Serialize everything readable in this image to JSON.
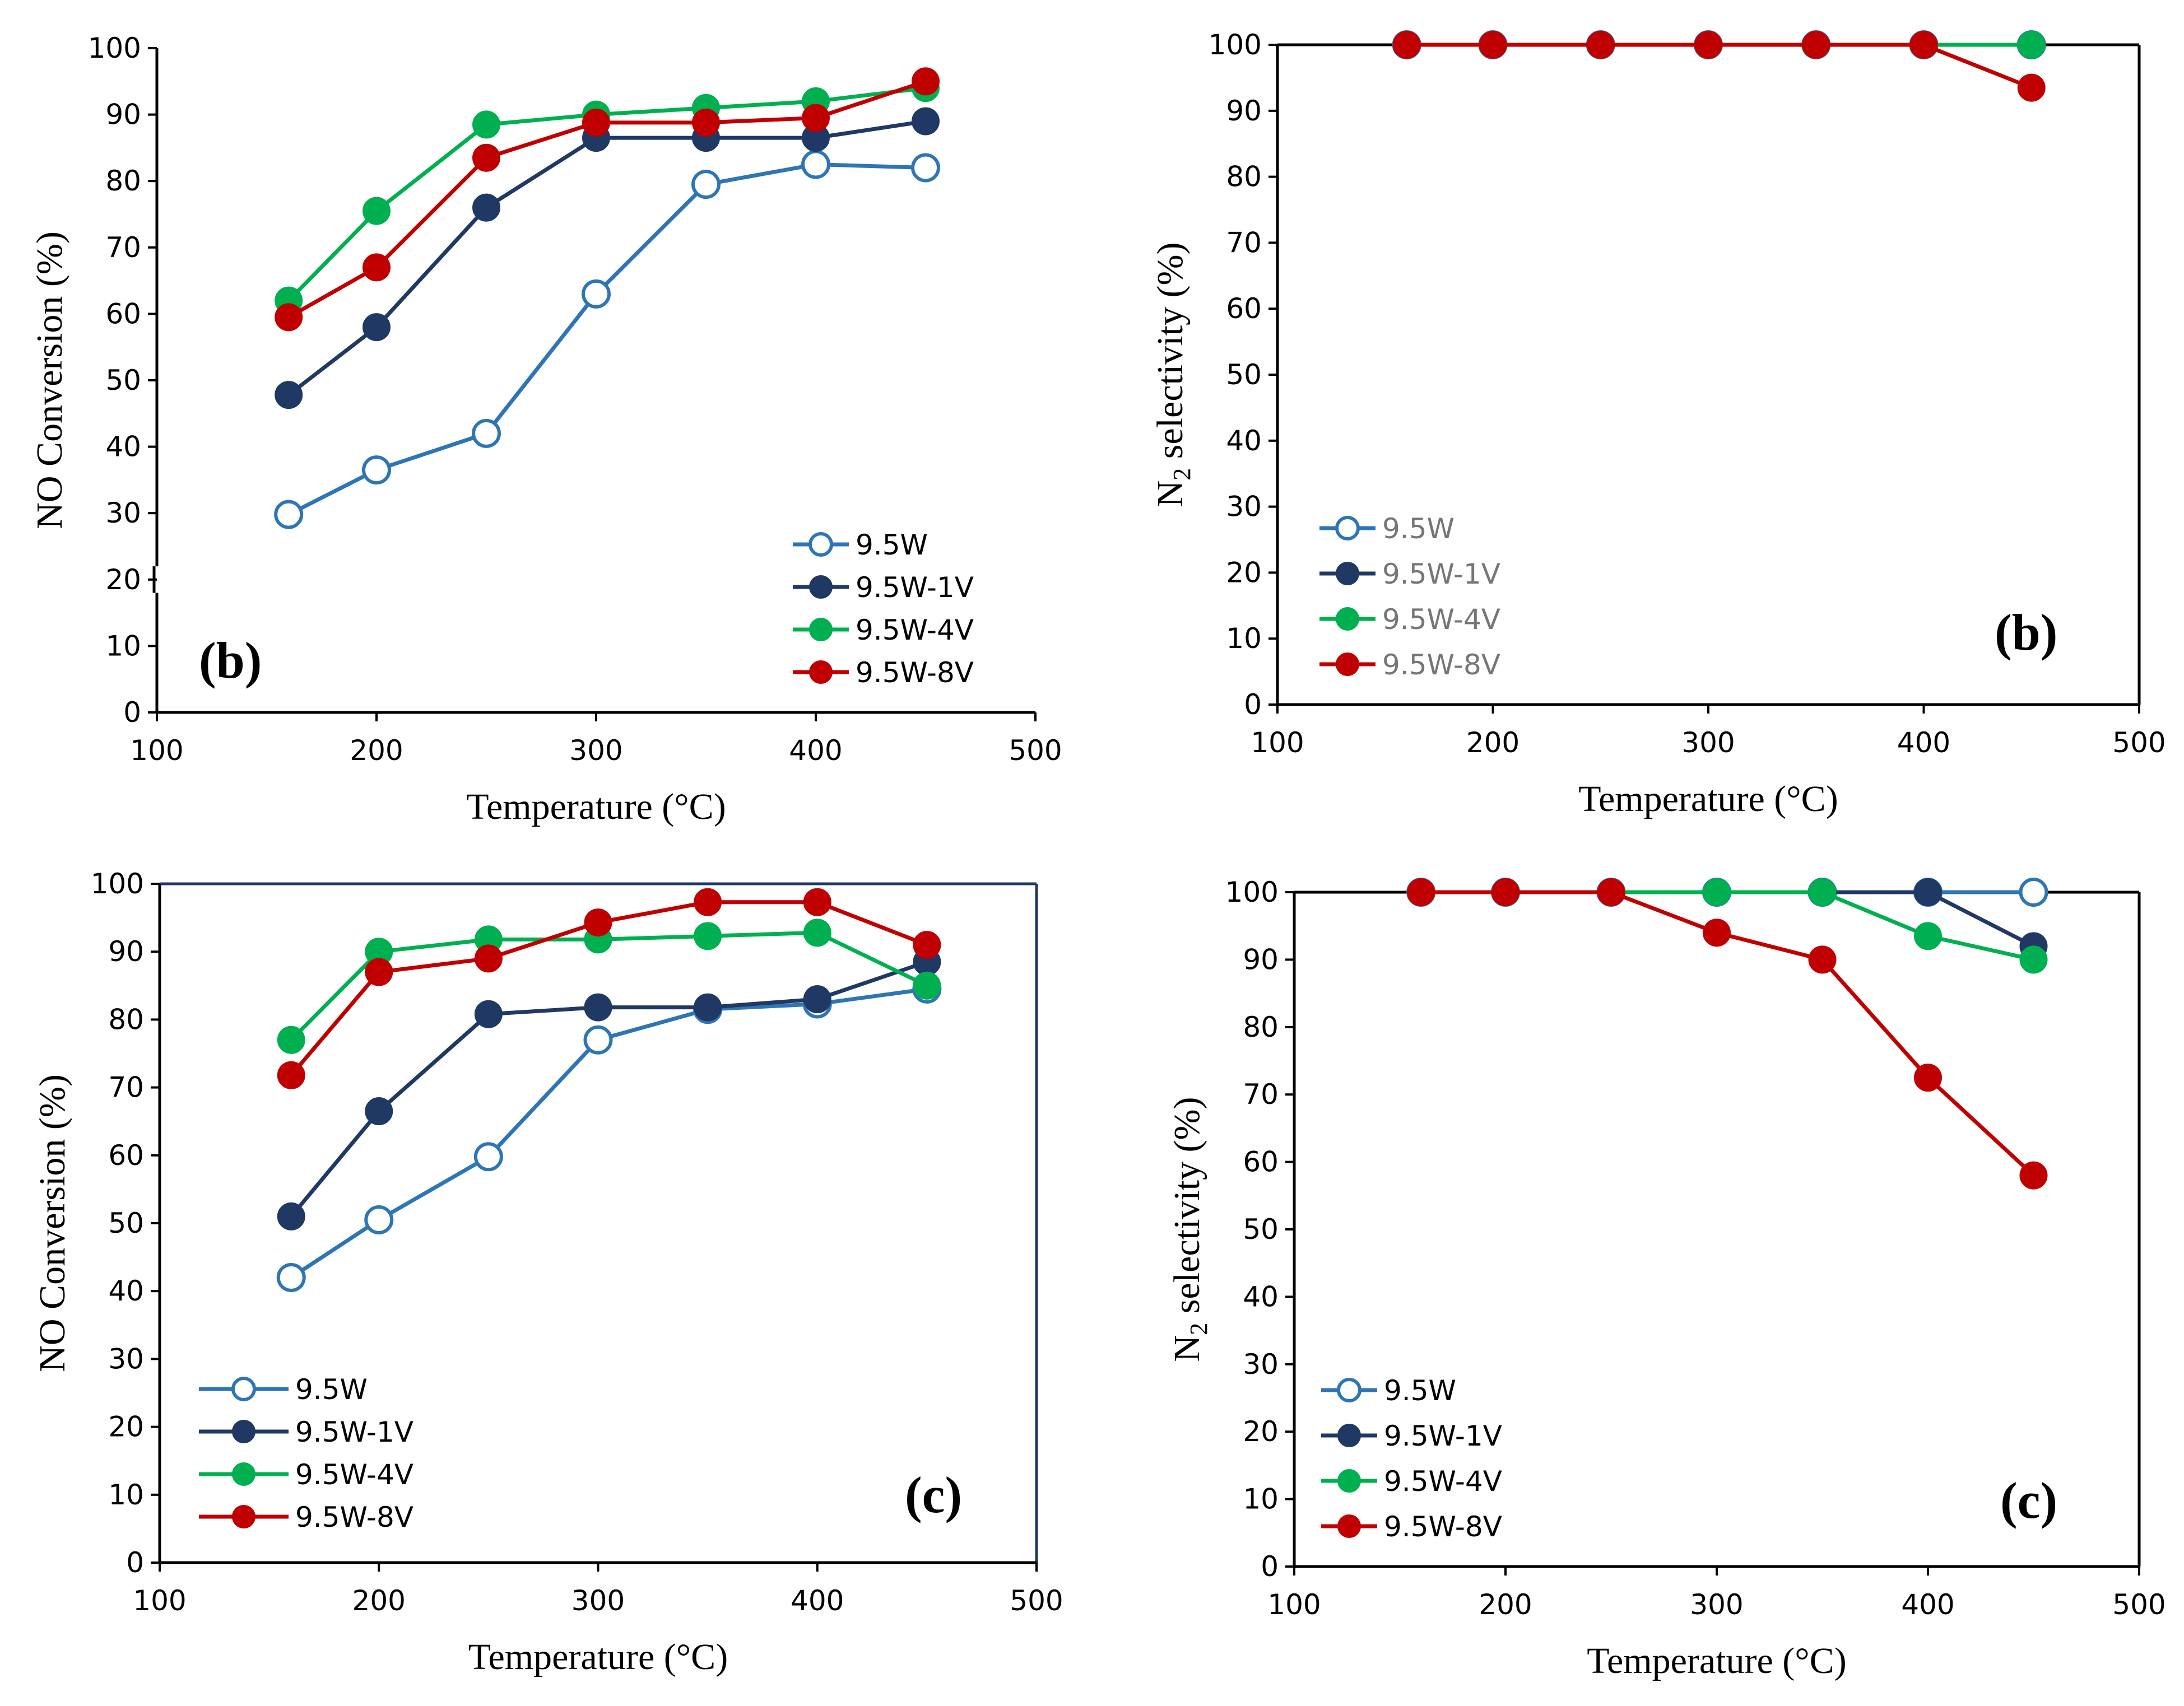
{
  "figure": {
    "colors": {
      "9.5W": "#2E75B6",
      "9.5W-1V": "#1F3864",
      "9.5W-4V": "#00B050",
      "9.5W-8V": "#C00000",
      "frame_blue": "#1F3864"
    }
  },
  "chart_data": [
    {
      "type": "line",
      "title": "",
      "panel_label": "(b)",
      "xlabel": "Temperature (°C)",
      "ylabel": "NO Conversion (%)",
      "xlim": [
        100,
        500
      ],
      "ylim": [
        0,
        100
      ],
      "xticks": [
        "100",
        "200",
        "300",
        "400",
        "500"
      ],
      "yticks": [
        "0",
        "10",
        "20",
        "30",
        "40",
        "50",
        "60",
        "70",
        "80",
        "90",
        "100"
      ],
      "x": [
        160,
        200,
        250,
        300,
        350,
        400,
        450
      ],
      "legend_position": "bottom-right",
      "series": [
        {
          "name": "9.5W",
          "marker": "open-circle",
          "color": "#2E75B6",
          "values": [
            29.8,
            36.5,
            42,
            63,
            79.5,
            82.5,
            82
          ]
        },
        {
          "name": "9.5W-1V",
          "marker": "filled-circle",
          "color": "#1F3864",
          "values": [
            47.8,
            58,
            76,
            86.5,
            86.5,
            86.5,
            89
          ]
        },
        {
          "name": "9.5W-4V",
          "marker": "filled-circle",
          "color": "#00B050",
          "values": [
            62,
            75.5,
            88.5,
            90,
            91,
            92,
            94
          ]
        },
        {
          "name": "9.5W-8V",
          "marker": "filled-circle",
          "color": "#C00000",
          "values": [
            59.5,
            67,
            83.5,
            88.8,
            88.8,
            89.5,
            95
          ]
        }
      ]
    },
    {
      "type": "line",
      "title": "",
      "panel_label": "(b)",
      "xlabel": "Temperature (°C)",
      "ylabel": "N2 selectivity (%)",
      "ylabel_main": "N",
      "ylabel_sub": "2",
      "ylabel_rest": " selectivity (%)",
      "xlim": [
        100,
        500
      ],
      "ylim": [
        0,
        100
      ],
      "xticks": [
        "100",
        "200",
        "300",
        "400",
        "500"
      ],
      "yticks": [
        "0",
        "10",
        "20",
        "30",
        "40",
        "50",
        "60",
        "70",
        "80",
        "90",
        "100"
      ],
      "x": [
        160,
        200,
        250,
        300,
        350,
        400,
        450
      ],
      "legend_position": "bottom-left",
      "series": [
        {
          "name": "9.5W",
          "marker": "open-circle",
          "color": "#2E75B6",
          "values": [
            100,
            100,
            100,
            100,
            100,
            100,
            100
          ]
        },
        {
          "name": "9.5W-1V",
          "marker": "filled-circle",
          "color": "#1F3864",
          "values": [
            100,
            100,
            100,
            100,
            100,
            100,
            100
          ]
        },
        {
          "name": "9.5W-4V",
          "marker": "filled-circle",
          "color": "#00B050",
          "values": [
            100,
            100,
            100,
            100,
            100,
            100,
            100
          ]
        },
        {
          "name": "9.5W-8V",
          "marker": "filled-circle",
          "color": "#C00000",
          "values": [
            100,
            100,
            100,
            100,
            100,
            100,
            93.5
          ]
        }
      ]
    },
    {
      "type": "line",
      "title": "",
      "panel_label": "(c)",
      "xlabel": "Temperature (°C)",
      "ylabel": "NO Conversion (%)",
      "xlim": [
        100,
        500
      ],
      "ylim": [
        0,
        100
      ],
      "xticks": [
        "100",
        "200",
        "300",
        "400",
        "500"
      ],
      "yticks": [
        "0",
        "10",
        "20",
        "30",
        "40",
        "50",
        "60",
        "70",
        "80",
        "90",
        "100"
      ],
      "x": [
        160,
        200,
        250,
        300,
        350,
        400,
        450
      ],
      "legend_position": "bottom-left",
      "series": [
        {
          "name": "9.5W",
          "marker": "open-circle",
          "color": "#2E75B6",
          "values": [
            42,
            50.5,
            59.8,
            77,
            81.5,
            82.3,
            84.5
          ]
        },
        {
          "name": "9.5W-1V",
          "marker": "filled-circle",
          "color": "#1F3864",
          "values": [
            51,
            66.5,
            80.8,
            81.8,
            81.8,
            83,
            88.5
          ]
        },
        {
          "name": "9.5W-4V",
          "marker": "filled-circle",
          "color": "#00B050",
          "values": [
            77,
            90,
            91.8,
            91.8,
            92.3,
            92.8,
            85
          ]
        },
        {
          "name": "9.5W-8V",
          "marker": "filled-circle",
          "color": "#C00000",
          "values": [
            71.8,
            87,
            89,
            94.3,
            97.3,
            97.3,
            91
          ]
        }
      ]
    },
    {
      "type": "line",
      "title": "",
      "panel_label": "(c)",
      "xlabel": "Temperature (°C)",
      "ylabel": "N2 selectivity (%)",
      "ylabel_main": "N",
      "ylabel_sub": "2",
      "ylabel_rest": " selectivity (%)",
      "xlim": [
        100,
        500
      ],
      "ylim": [
        0,
        100
      ],
      "xticks": [
        "100",
        "200",
        "300",
        "400",
        "500"
      ],
      "yticks": [
        "0",
        "10",
        "20",
        "30",
        "40",
        "50",
        "60",
        "70",
        "80",
        "90",
        "100"
      ],
      "x": [
        160,
        200,
        250,
        300,
        350,
        400,
        450
      ],
      "legend_position": "bottom-left",
      "series": [
        {
          "name": "9.5W",
          "marker": "open-circle",
          "color": "#2E75B6",
          "values": [
            100,
            100,
            100,
            100,
            100,
            100,
            100
          ]
        },
        {
          "name": "9.5W-1V",
          "marker": "filled-circle",
          "color": "#1F3864",
          "values": [
            100,
            100,
            100,
            100,
            100,
            100,
            92
          ]
        },
        {
          "name": "9.5W-4V",
          "marker": "filled-circle",
          "color": "#00B050",
          "values": [
            100,
            100,
            100,
            100,
            100,
            93.5,
            90
          ]
        },
        {
          "name": "9.5W-8V",
          "marker": "filled-circle",
          "color": "#C00000",
          "values": [
            100,
            100,
            100,
            94,
            90,
            72.5,
            58
          ]
        }
      ]
    }
  ]
}
